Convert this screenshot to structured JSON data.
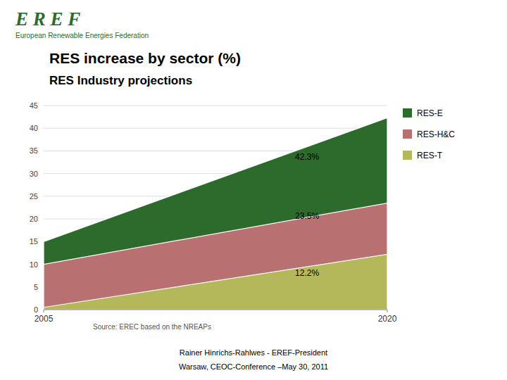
{
  "chart_data": {
    "type": "area",
    "stacked": false,
    "header_title": "E R E F",
    "header_subtitle": "European Renewable Energies Federation",
    "title": "RES increase by sector (%)",
    "subtitle": "RES Industry projections",
    "x": [
      2005,
      2020
    ],
    "series": [
      {
        "name": "RES-E",
        "color": "#2d6b2d",
        "values": [
          15.0,
          42.3
        ]
      },
      {
        "name": "RES-H&C",
        "color": "#b87070",
        "values": [
          10.0,
          23.5
        ]
      },
      {
        "name": "RES-T",
        "color": "#b5b85a",
        "values": [
          0.5,
          12.2
        ]
      }
    ],
    "xlim": [
      2005,
      2020
    ],
    "xticks": [
      2005,
      2020
    ],
    "ylim": [
      0,
      45
    ],
    "yticks": [
      0,
      5,
      10,
      15,
      20,
      25,
      30,
      35,
      40,
      45
    ],
    "grid": true,
    "legend": "right",
    "annotations": [
      {
        "text": "42.3%",
        "x": 2016.5,
        "y": 33.5
      },
      {
        "text": "23.5%",
        "x": 2016.5,
        "y": 20.5
      },
      {
        "text": "12.2%",
        "x": 2016.5,
        "y": 8.0
      }
    ],
    "source": "Source: EREC based on the NREAPs",
    "footer": [
      "Rainer Hinrichs-Rahlwes  -  EREF-President",
      "Warsaw, CEOC-Conference –May 30, 2011"
    ]
  }
}
